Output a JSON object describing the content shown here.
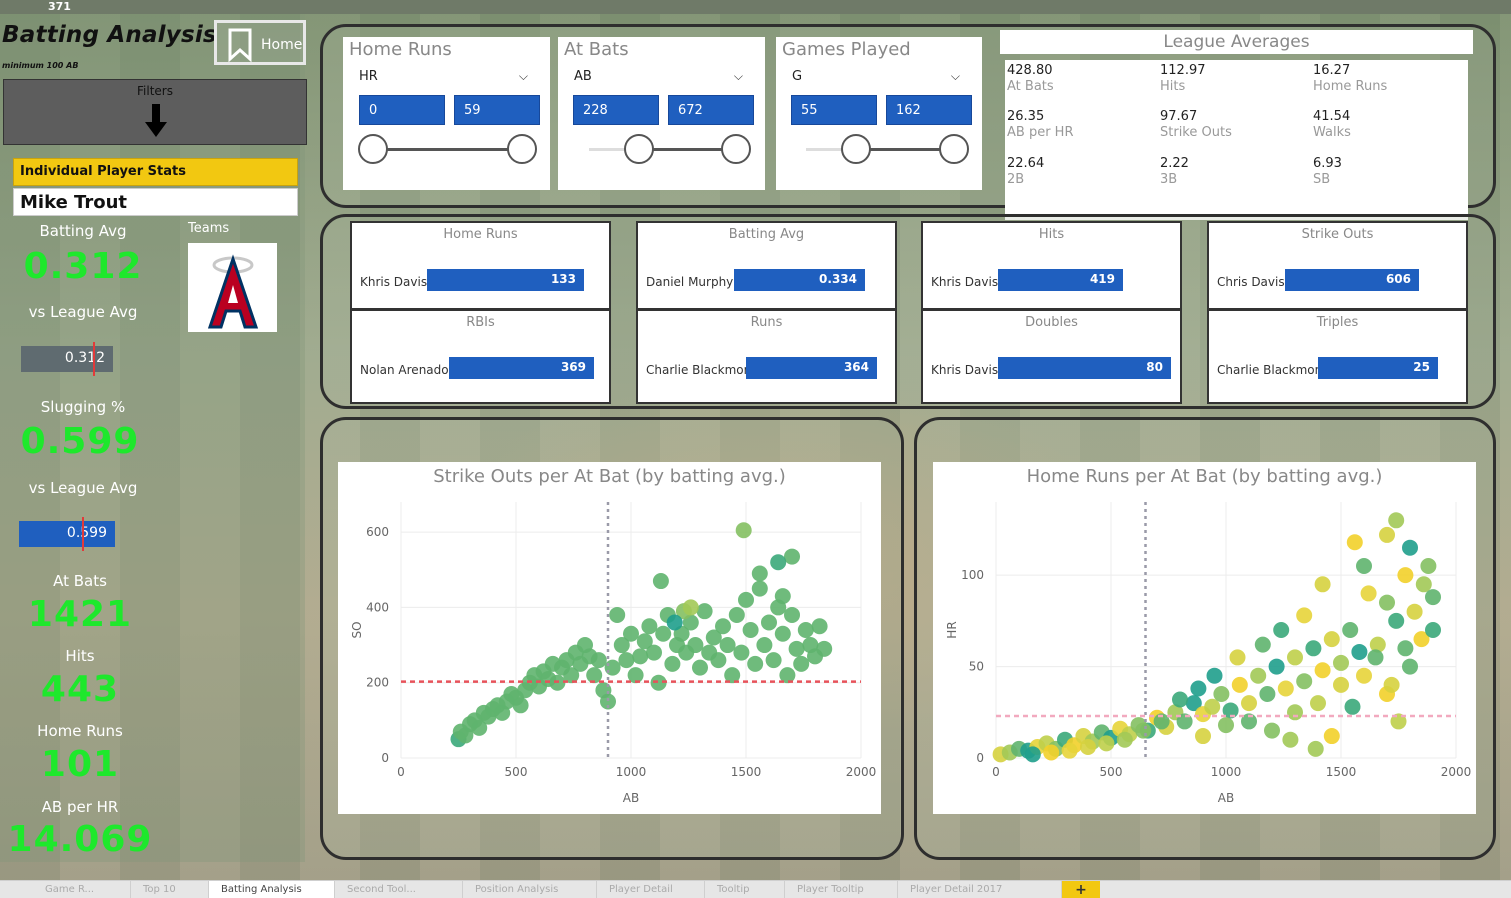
{
  "top_strip_number": "371",
  "app": {
    "title": "Batting Analysis",
    "subtitle": "minimum 100 AB",
    "home_label": "Home",
    "filters_label": "Filters"
  },
  "player": {
    "section_label": "Individual Player Stats",
    "name": "Mike Trout",
    "teams_label": "Teams",
    "kpis": {
      "batting_avg_label": "Batting Avg",
      "batting_avg": "0.312",
      "vs_league_label_1": "vs League Avg",
      "batting_avg_gauge": "0.312",
      "slugging_label": "Slugging %",
      "slugging": "0.599",
      "vs_league_label_2": "vs League Avg",
      "slugging_gauge": "0.599",
      "at_bats_label": "At Bats",
      "at_bats": "1421",
      "hits_label": "Hits",
      "hits": "443",
      "home_runs_label": "Home Runs",
      "home_runs": "101",
      "ab_per_hr_label": "AB per HR",
      "ab_per_hr": "14.069"
    },
    "gauges": {
      "batting_fill_fraction": 1.0,
      "slugging_fill_fraction": 1.0
    }
  },
  "slicers": [
    {
      "title": "Home Runs",
      "field": "HR",
      "min": "0",
      "max": "59"
    },
    {
      "title": "At Bats",
      "field": "AB",
      "min": "228",
      "max": "672"
    },
    {
      "title": "Games Played",
      "field": "G",
      "min": "55",
      "max": "162"
    }
  ],
  "league": {
    "title": "League Averages",
    "stats": [
      {
        "value": "428.80",
        "label": "At Bats"
      },
      {
        "value": "112.97",
        "label": "Hits"
      },
      {
        "value": "16.27",
        "label": "Home Runs"
      },
      {
        "value": "26.35",
        "label": "AB per HR"
      },
      {
        "value": "97.67",
        "label": "Strike Outs"
      },
      {
        "value": "41.54",
        "label": "Walks"
      },
      {
        "value": "22.64",
        "label": "2B"
      },
      {
        "value": "2.22",
        "label": "3B"
      },
      {
        "value": "6.93",
        "label": "SB"
      }
    ]
  },
  "leaders": [
    {
      "title": "Home Runs",
      "player": "Khris Davis",
      "value": "133"
    },
    {
      "title": "Batting Avg",
      "player": "Daniel Murphy",
      "value": "0.334"
    },
    {
      "title": "Hits",
      "player": "Khris Davis",
      "value": "419"
    },
    {
      "title": "Strike Outs",
      "player": "Chris Davis",
      "value": "606"
    },
    {
      "title": "RBIs",
      "player": "Nolan Arenado",
      "value": "369"
    },
    {
      "title": "Runs",
      "player": "Charlie Blackmon",
      "value": "364"
    },
    {
      "title": "Doubles",
      "player": "Khris Davis",
      "value": "80"
    },
    {
      "title": "Triples",
      "player": "Charlie Blackmon",
      "value": "25"
    }
  ],
  "chart_data": [
    {
      "type": "scatter",
      "title": "Strike Outs per At Bat (by batting avg.)",
      "xlabel": "AB",
      "ylabel": "SO",
      "xlim": [
        0,
        2000
      ],
      "ylim": [
        0,
        680
      ],
      "xticks": [
        0,
        500,
        1000,
        1500,
        2000
      ],
      "yticks": [
        0,
        200,
        400,
        600
      ],
      "ref_x": 900,
      "ref_y": 203,
      "ref_x_color": "#9a9aa8",
      "ref_y_color": "#e8525a",
      "grid": true,
      "points": [
        [
          250,
          50
        ],
        [
          260,
          70
        ],
        [
          280,
          60
        ],
        [
          300,
          90
        ],
        [
          320,
          100
        ],
        [
          340,
          80
        ],
        [
          360,
          120
        ],
        [
          380,
          110
        ],
        [
          400,
          130
        ],
        [
          420,
          140
        ],
        [
          440,
          120
        ],
        [
          460,
          150
        ],
        [
          480,
          170
        ],
        [
          500,
          160
        ],
        [
          520,
          140
        ],
        [
          540,
          180
        ],
        [
          560,
          200
        ],
        [
          580,
          220
        ],
        [
          600,
          190
        ],
        [
          620,
          230
        ],
        [
          640,
          210
        ],
        [
          660,
          250
        ],
        [
          680,
          200
        ],
        [
          700,
          240
        ],
        [
          720,
          260
        ],
        [
          740,
          220
        ],
        [
          760,
          280
        ],
        [
          780,
          250
        ],
        [
          800,
          300
        ],
        [
          820,
          270
        ],
        [
          840,
          220
        ],
        [
          860,
          260
        ],
        [
          880,
          180
        ],
        [
          900,
          150
        ],
        [
          920,
          240
        ],
        [
          940,
          380
        ],
        [
          960,
          300
        ],
        [
          980,
          260
        ],
        [
          1000,
          330
        ],
        [
          1020,
          220
        ],
        [
          1040,
          270
        ],
        [
          1060,
          310
        ],
        [
          1080,
          350
        ],
        [
          1100,
          280
        ],
        [
          1120,
          200
        ],
        [
          1140,
          330
        ],
        [
          1160,
          380
        ],
        [
          1180,
          250
        ],
        [
          1200,
          300
        ],
        [
          1220,
          330
        ],
        [
          1240,
          280
        ],
        [
          1260,
          360
        ],
        [
          1280,
          300
        ],
        [
          1300,
          240
        ],
        [
          1320,
          390
        ],
        [
          1340,
          280
        ],
        [
          1360,
          320
        ],
        [
          1380,
          260
        ],
        [
          1400,
          350
        ],
        [
          1420,
          300
        ],
        [
          1440,
          220
        ],
        [
          1460,
          380
        ],
        [
          1480,
          280
        ],
        [
          1500,
          420
        ],
        [
          1520,
          340
        ],
        [
          1540,
          250
        ],
        [
          1560,
          450
        ],
        [
          1580,
          300
        ],
        [
          1600,
          360
        ],
        [
          1620,
          260
        ],
        [
          1640,
          400
        ],
        [
          1660,
          330
        ],
        [
          1680,
          220
        ],
        [
          1700,
          380
        ],
        [
          1720,
          290
        ],
        [
          1740,
          250
        ],
        [
          1760,
          340
        ],
        [
          1780,
          300
        ],
        [
          1800,
          270
        ],
        [
          1820,
          350
        ],
        [
          1840,
          290
        ],
        [
          1490,
          605
        ],
        [
          1700,
          535
        ],
        [
          1640,
          520
        ],
        [
          1560,
          490
        ],
        [
          1130,
          470
        ],
        [
          1230,
          390
        ],
        [
          1190,
          360
        ],
        [
          1260,
          400
        ],
        [
          1660,
          430
        ]
      ]
    },
    {
      "type": "scatter",
      "title": "Home Runs per At Bat (by batting avg.)",
      "xlabel": "AB",
      "ylabel": "HR",
      "xlim": [
        0,
        2000
      ],
      "ylim": [
        0,
        140
      ],
      "xticks": [
        0,
        500,
        1000,
        1500,
        2000
      ],
      "yticks": [
        0,
        50,
        100
      ],
      "ref_x": 650,
      "ref_y": 23,
      "ref_x_color": "#9a9aa8",
      "ref_y_color": "#f2a9bf",
      "grid": true,
      "points": [
        [
          20,
          2
        ],
        [
          60,
          3
        ],
        [
          100,
          5
        ],
        [
          140,
          4
        ],
        [
          180,
          6
        ],
        [
          220,
          8
        ],
        [
          260,
          5
        ],
        [
          300,
          10
        ],
        [
          340,
          7
        ],
        [
          380,
          12
        ],
        [
          420,
          9
        ],
        [
          460,
          14
        ],
        [
          500,
          11
        ],
        [
          540,
          16
        ],
        [
          580,
          13
        ],
        [
          620,
          18
        ],
        [
          660,
          15
        ],
        [
          700,
          22
        ],
        [
          740,
          17
        ],
        [
          780,
          25
        ],
        [
          820,
          20
        ],
        [
          860,
          30
        ],
        [
          900,
          24
        ],
        [
          940,
          28
        ],
        [
          980,
          35
        ],
        [
          1020,
          26
        ],
        [
          1060,
          40
        ],
        [
          1100,
          30
        ],
        [
          1140,
          45
        ],
        [
          1180,
          35
        ],
        [
          1220,
          50
        ],
        [
          1260,
          38
        ],
        [
          1300,
          55
        ],
        [
          1340,
          42
        ],
        [
          1380,
          60
        ],
        [
          1420,
          48
        ],
        [
          1460,
          65
        ],
        [
          1500,
          52
        ],
        [
          1540,
          70
        ],
        [
          1580,
          58
        ],
        [
          1620,
          90
        ],
        [
          1660,
          62
        ],
        [
          1700,
          85
        ],
        [
          1740,
          75
        ],
        [
          1780,
          100
        ],
        [
          1820,
          80
        ],
        [
          1860,
          95
        ],
        [
          1900,
          88
        ],
        [
          1700,
          122
        ],
        [
          1740,
          130
        ],
        [
          1600,
          105
        ],
        [
          1560,
          118
        ],
        [
          1420,
          95
        ],
        [
          1340,
          78
        ],
        [
          1240,
          70
        ],
        [
          1160,
          62
        ],
        [
          1050,
          55
        ],
        [
          950,
          45
        ],
        [
          880,
          38
        ],
        [
          800,
          32
        ],
        [
          720,
          20
        ],
        [
          640,
          15
        ],
        [
          560,
          10
        ],
        [
          480,
          8
        ],
        [
          400,
          6
        ],
        [
          320,
          4
        ],
        [
          240,
          3
        ],
        [
          160,
          2
        ],
        [
          1800,
          115
        ],
        [
          1880,
          105
        ],
        [
          1100,
          20
        ],
        [
          1200,
          15
        ],
        [
          1300,
          25
        ],
        [
          1400,
          30
        ],
        [
          1500,
          40
        ],
        [
          1600,
          45
        ],
        [
          1700,
          35
        ],
        [
          1750,
          20
        ],
        [
          1800,
          50
        ],
        [
          1850,
          65
        ],
        [
          1280,
          10
        ],
        [
          1390,
          5
        ],
        [
          1460,
          12
        ],
        [
          1550,
          28
        ],
        [
          1650,
          55
        ],
        [
          1720,
          40
        ],
        [
          1780,
          60
        ],
        [
          1900,
          70
        ],
        [
          1000,
          18
        ],
        [
          900,
          12
        ]
      ]
    }
  ],
  "tabs": [
    {
      "label": "Game R..."
    },
    {
      "label": "Top 10"
    },
    {
      "label": "Batting Analysis"
    },
    {
      "label": "Second Tool..."
    },
    {
      "label": "Position Analysis"
    },
    {
      "label": "Player Detail"
    },
    {
      "label": "Tooltip"
    },
    {
      "label": "Player Tooltip"
    },
    {
      "label": "Player Detail 2017"
    }
  ],
  "tab_add_label": "+",
  "colors": {
    "accent_blue": "#1f5fbf",
    "kpi_green": "#1ee82c",
    "section_yellow": "#f2c811"
  }
}
